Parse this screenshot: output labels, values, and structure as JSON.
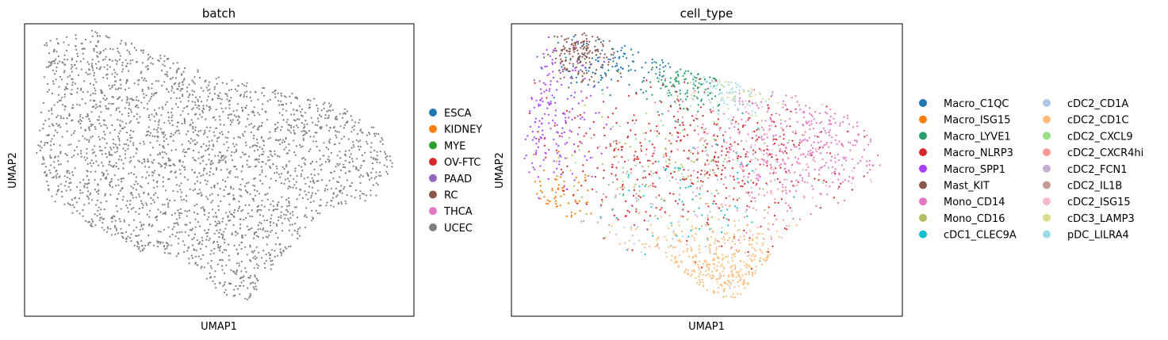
{
  "chart_data": [
    {
      "type": "scatter",
      "title": "batch",
      "xlabel": "UMAP1",
      "ylabel": "UMAP2",
      "ticks_visible": false,
      "grid": false,
      "legend_placement": "right",
      "point_color": "#7f7f7f",
      "legend": [
        {
          "label": "ESCA",
          "color": "#1f77b4"
        },
        {
          "label": "KIDNEY",
          "color": "#ff7f0e"
        },
        {
          "label": "MYE",
          "color": "#2ca02c"
        },
        {
          "label": "OV-FTC",
          "color": "#d62728"
        },
        {
          "label": "PAAD",
          "color": "#9467bd"
        },
        {
          "label": "RC",
          "color": "#8c564b"
        },
        {
          "label": "THCA",
          "color": "#e377c2"
        },
        {
          "label": "UCEC",
          "color": "#7f7f7f"
        }
      ]
    },
    {
      "type": "scatter",
      "title": "cell_type",
      "xlabel": "UMAP1",
      "ylabel": "UMAP2",
      "ticks_visible": false,
      "grid": false,
      "legend_placement": "right",
      "legend": [
        {
          "label": "Macro_C1QC",
          "color": "#1f77b4"
        },
        {
          "label": "Macro_ISG15",
          "color": "#ff7f0e"
        },
        {
          "label": "Macro_LYVE1",
          "color": "#279e68"
        },
        {
          "label": "Macro_NLRP3",
          "color": "#d62728"
        },
        {
          "label": "Macro_SPP1",
          "color": "#aa40fc"
        },
        {
          "label": "Mast_KIT",
          "color": "#8c564b"
        },
        {
          "label": "Mono_CD14",
          "color": "#e377c2"
        },
        {
          "label": "Mono_CD16",
          "color": "#b5bd61"
        },
        {
          "label": "cDC1_CLEC9A",
          "color": "#17becf"
        },
        {
          "label": "cDC2_CD1A",
          "color": "#aec7e8"
        },
        {
          "label": "cDC2_CD1C",
          "color": "#ffbb78"
        },
        {
          "label": "cDC2_CXCL9",
          "color": "#98df8a"
        },
        {
          "label": "cDC2_CXCR4hi",
          "color": "#ff9896"
        },
        {
          "label": "cDC2_FCN1",
          "color": "#c5b0d5"
        },
        {
          "label": "cDC2_IL1B",
          "color": "#c49c94"
        },
        {
          "label": "cDC2_ISG15",
          "color": "#f7b6d2"
        },
        {
          "label": "cDC3_LAMP3",
          "color": "#dbdb8d"
        },
        {
          "label": "pDC_LILRA4",
          "color": "#9edae5"
        }
      ]
    }
  ]
}
